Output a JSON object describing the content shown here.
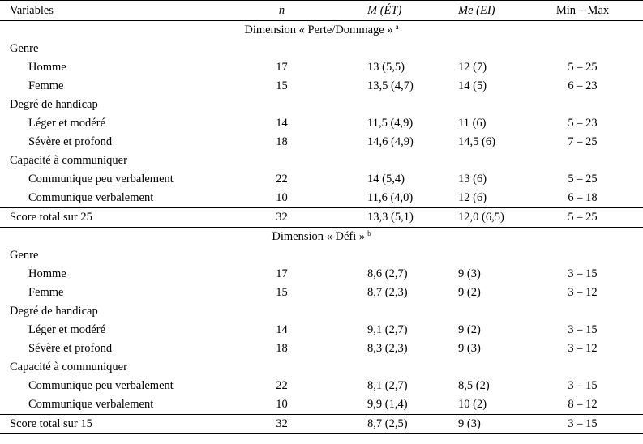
{
  "header": {
    "variables": "Variables",
    "n": "n",
    "m_a": "M",
    "m_b": "(ÉT)",
    "me_a": "Me",
    "me_b": "(EI)",
    "minmax": "Min – Max"
  },
  "sections": [
    {
      "title": "Dimension « Perte/Dommage »",
      "note": "a",
      "groups": [
        {
          "label": "Genre",
          "rows": [
            {
              "label": "Homme",
              "n": "17",
              "m": "13 (5,5)",
              "me": "12 (7)",
              "mm": "5 – 25"
            },
            {
              "label": "Femme",
              "n": "15",
              "m": "13,5 (4,7)",
              "me": "14 (5)",
              "mm": "6 – 23"
            }
          ]
        },
        {
          "label": "Degré de handicap",
          "rows": [
            {
              "label": "Léger et modéré",
              "n": "14",
              "m": "11,5 (4,9)",
              "me": "11 (6)",
              "mm": "5 – 23"
            },
            {
              "label": "Sévère et profond",
              "n": "18",
              "m": "14,6 (4,9)",
              "me": "14,5 (6)",
              "mm": "7 – 25"
            }
          ]
        },
        {
          "label": "Capacité à communiquer",
          "rows": [
            {
              "label": "Communique peu verbalement",
              "n": "22",
              "m": "14 (5,4)",
              "me": "13 (6)",
              "mm": "5 – 25"
            },
            {
              "label": "Communique verbalement",
              "n": "10",
              "m": "11,6 (4,0)",
              "me": "12 (6)",
              "mm": "6 – 18"
            }
          ]
        }
      ],
      "total": {
        "label": "Score total sur 25",
        "n": "32",
        "m": "13,3 (5,1)",
        "me": "12,0 (6,5)",
        "mm": "5 – 25"
      }
    },
    {
      "title": "Dimension « Défi »",
      "note": "b",
      "groups": [
        {
          "label": "Genre",
          "rows": [
            {
              "label": "Homme",
              "n": "17",
              "m": "8,6 (2,7)",
              "me": "9 (3)",
              "mm": "3 – 15"
            },
            {
              "label": "Femme",
              "n": "15",
              "m": "8,7 (2,3)",
              "me": "9 (2)",
              "mm": "3 – 12"
            }
          ]
        },
        {
          "label": "Degré de handicap",
          "rows": [
            {
              "label": "Léger et modéré",
              "n": "14",
              "m": "9,1 (2,7)",
              "me": "9 (2)",
              "mm": "3 – 15"
            },
            {
              "label": "Sévère et profond",
              "n": "18",
              "m": "8,3 (2,3)",
              "me": "9 (3)",
              "mm": "3 – 12"
            }
          ]
        },
        {
          "label": "Capacité à communiquer",
          "rows": [
            {
              "label": "Communique peu verbalement",
              "n": "22",
              "m": "8,1 (2,7)",
              "me": "8,5 (2)",
              "mm": "3 – 15"
            },
            {
              "label": "Communique verbalement",
              "n": "10",
              "m": "9,9 (1,4)",
              "me": "10 (2)",
              "mm": "8 – 12"
            }
          ]
        }
      ],
      "total": {
        "label": "Score total sur 15",
        "n": "32",
        "m": "8,7 (2,5)",
        "me": "9 (3)",
        "mm": "3 – 15"
      }
    }
  ]
}
